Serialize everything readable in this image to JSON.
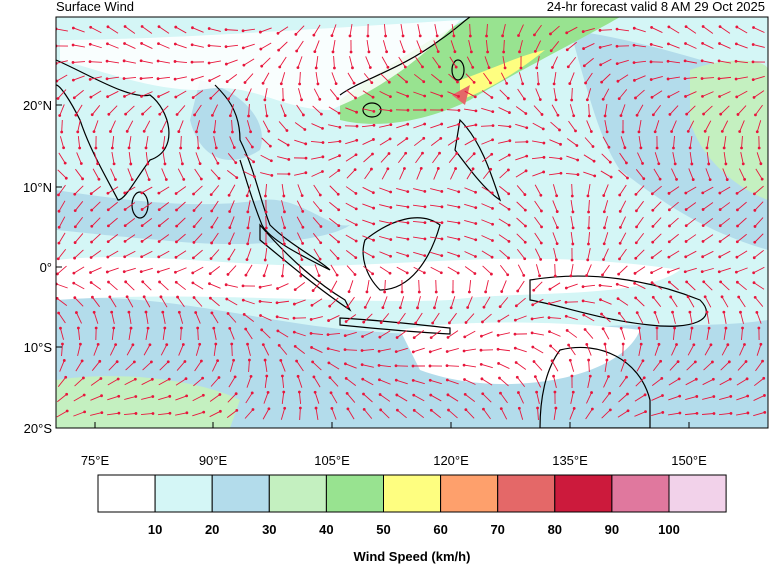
{
  "header": {
    "title": "Surface Wind",
    "subtitle": "24-hr forecast valid 8 AM 29 Oct 2025"
  },
  "map": {
    "lat_labels": [
      "20°N",
      "10°N",
      "0°",
      "10°S",
      "20°S"
    ],
    "lon_labels": [
      "75°E",
      "90°E",
      "105°E",
      "120°E",
      "135°E",
      "150°E"
    ]
  },
  "colorbar": {
    "title": "Wind Speed (km/h)",
    "colors": [
      "#ffffff",
      "#d4f6f6",
      "#b3dceb",
      "#c4f0c0",
      "#98e390",
      "#fefe80",
      "#fea06c",
      "#e46868",
      "#cc1a3c",
      "#e0789e",
      "#f2d2ea"
    ],
    "labels": [
      10,
      20,
      30,
      40,
      50,
      60,
      70,
      80,
      90,
      100
    ]
  }
}
